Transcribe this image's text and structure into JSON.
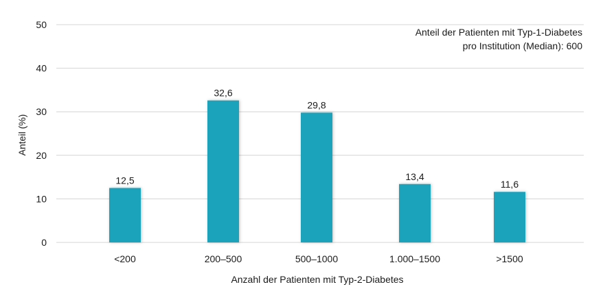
{
  "chart_data": {
    "type": "bar",
    "categories": [
      "<200",
      "200–500",
      "500–1000",
      "1.000–1500",
      ">1500"
    ],
    "values": [
      12.5,
      32.6,
      29.8,
      13.4,
      11.6
    ],
    "value_labels": [
      "12,5",
      "32,6",
      "29,8",
      "13,4",
      "11,6"
    ],
    "y_ticks": [
      0,
      10,
      20,
      30,
      40,
      50
    ],
    "ylim": [
      0,
      50
    ],
    "xlabel": "Anzahl der Patienten mit Typ-2-Diabetes",
    "ylabel": "Anteil (%)",
    "annotation": [
      "Anteil der Patienten mit Typ-1-Diabetes",
      "pro Institution (Median): 600"
    ],
    "bar_color": "#1aa3bc",
    "grid": true
  }
}
